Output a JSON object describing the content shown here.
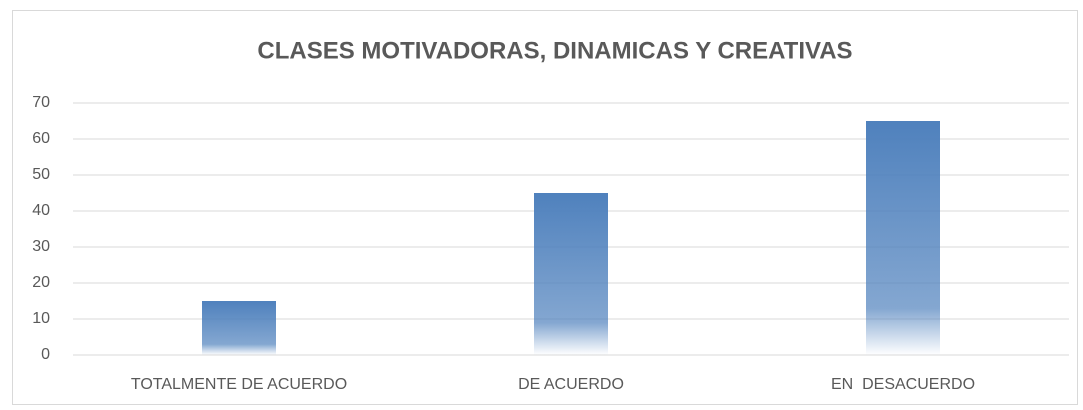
{
  "chart_data": {
    "type": "bar",
    "title": "CLASES MOTIVADORAS, DINAMICAS Y CREATIVAS",
    "categories": [
      "TOTALMENTE DE ACUERDO",
      "DE ACUERDO",
      "EN  DESACUERDO"
    ],
    "values": [
      15,
      45,
      65
    ],
    "color": "#4f81bd",
    "ylim": [
      0,
      70
    ],
    "yticks": [
      0,
      10,
      20,
      30,
      40,
      50,
      60,
      70
    ],
    "grid": true
  }
}
